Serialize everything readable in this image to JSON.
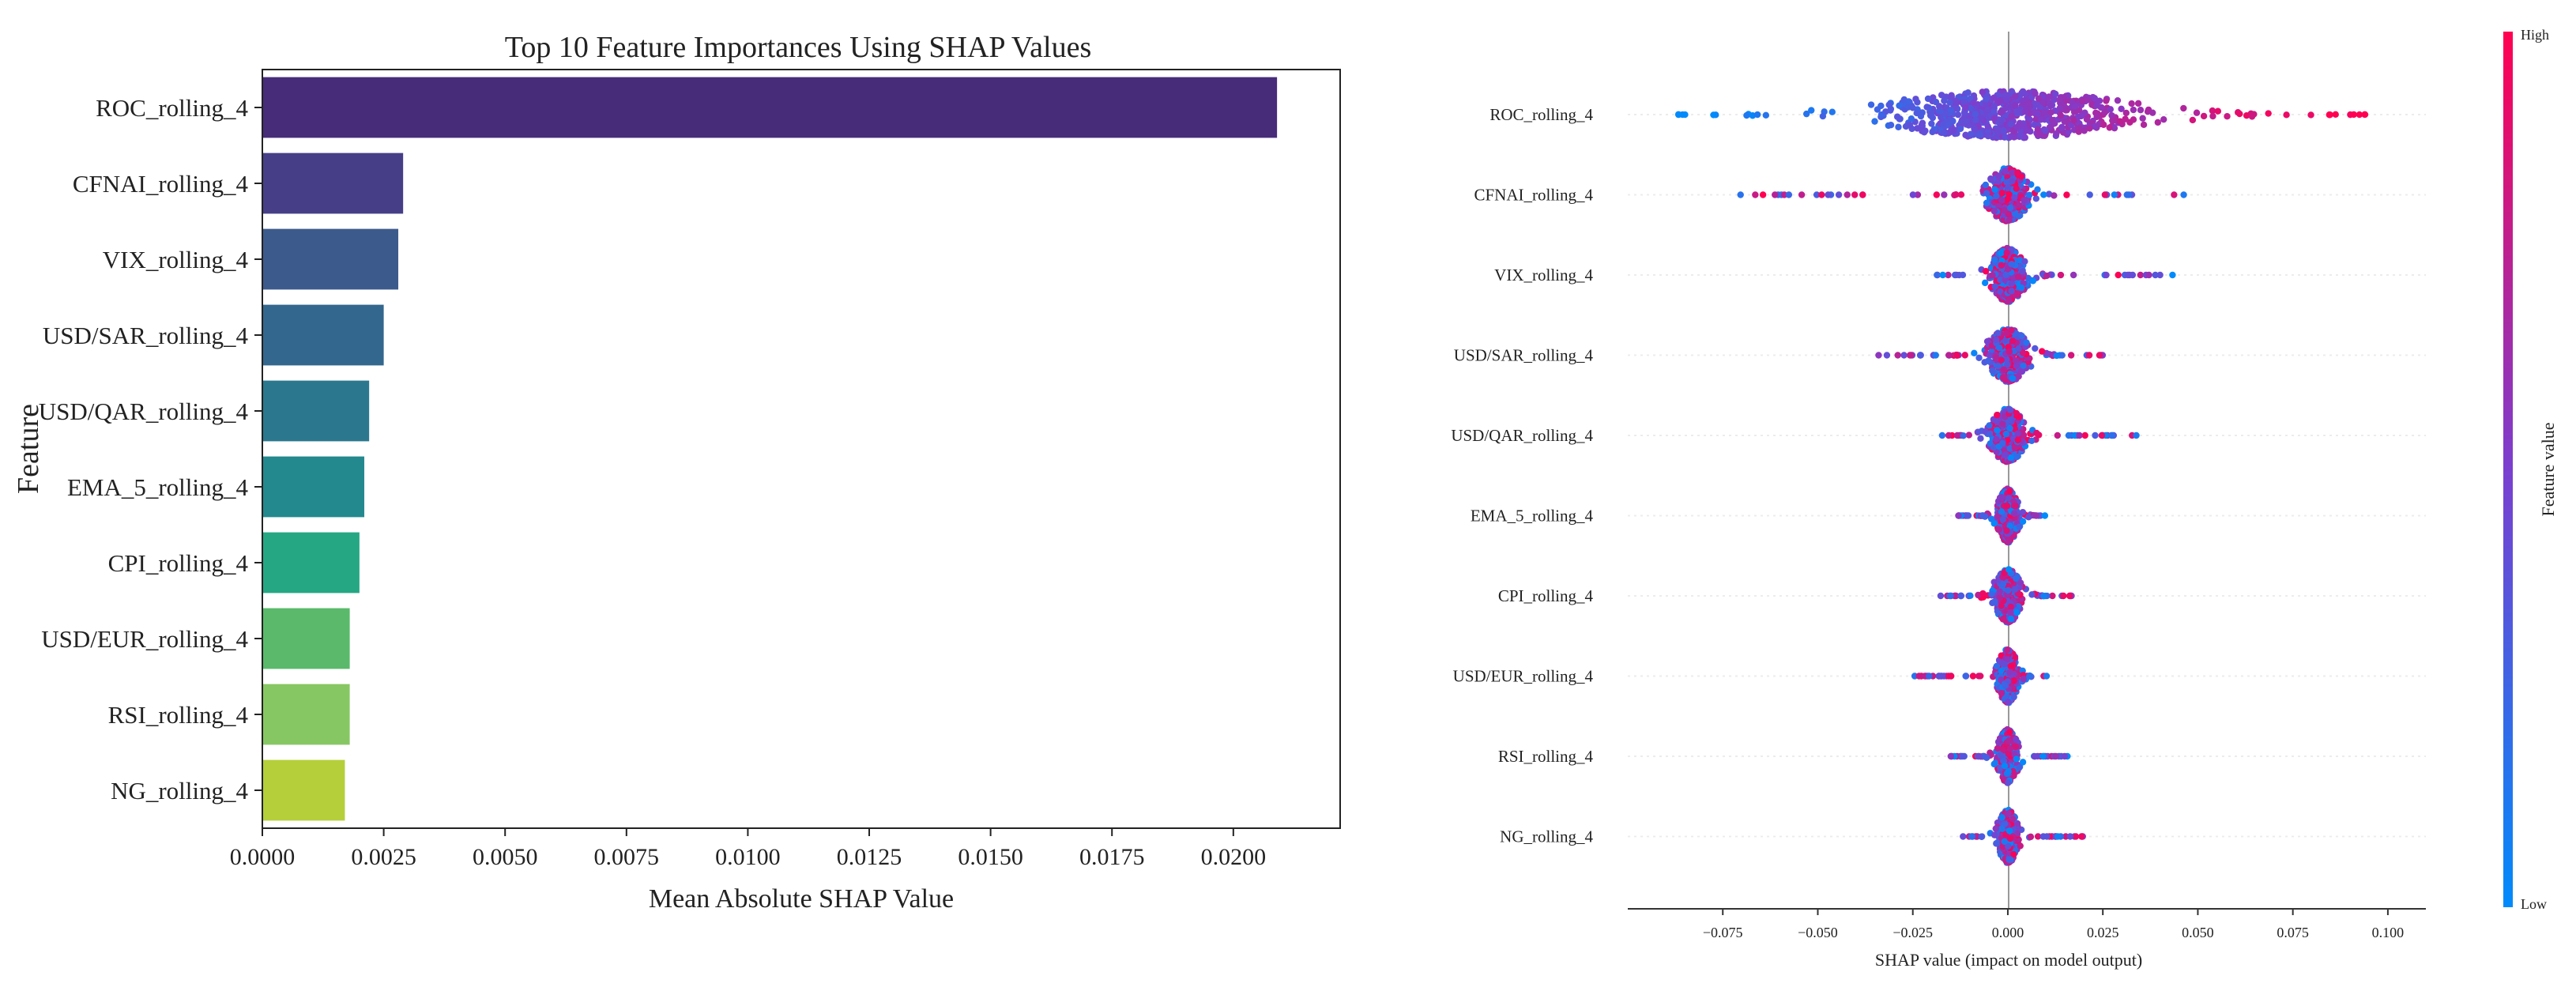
{
  "chart_data": [
    {
      "type": "bar",
      "orientation": "horizontal",
      "title": "Top 10 Feature Importances Using SHAP Values",
      "xlabel": "Mean Absolute SHAP Value",
      "ylabel": "Feature",
      "xlim": [
        0,
        0.0222
      ],
      "xticks": [
        "0.0000",
        "0.0025",
        "0.0050",
        "0.0075",
        "0.0100",
        "0.0125",
        "0.0150",
        "0.0175",
        "0.0200"
      ],
      "categories": [
        "ROC_rolling_4",
        "CFNAI_rolling_4",
        "VIX_rolling_4",
        "USD/SAR_rolling_4",
        "USD/QAR_rolling_4",
        "EMA_5_rolling_4",
        "CPI_rolling_4",
        "USD/EUR_rolling_4",
        "RSI_rolling_4",
        "NG_rolling_4"
      ],
      "values": [
        0.0209,
        0.0029,
        0.0028,
        0.0025,
        0.0022,
        0.0021,
        0.002,
        0.0018,
        0.0018,
        0.0017
      ],
      "colors": [
        "#472c7a",
        "#463f87",
        "#3d5a8c",
        "#34678d",
        "#2b788e",
        "#23898e",
        "#26a784",
        "#5ab96a",
        "#87c763",
        "#b4cf3a"
      ]
    },
    {
      "type": "scatter",
      "subtype": "shap-beeswarm",
      "xlabel": "SHAP value (impact on model output)",
      "xlim": [
        -0.1,
        0.11
      ],
      "xticks": [
        "−0.075",
        "−0.050",
        "−0.025",
        "0.000",
        "0.025",
        "0.050",
        "0.075",
        "0.100"
      ],
      "categories": [
        "ROC_rolling_4",
        "CFNAI_rolling_4",
        "VIX_rolling_4",
        "USD/SAR_rolling_4",
        "USD/QAR_rolling_4",
        "EMA_5_rolling_4",
        "CPI_rolling_4",
        "USD/EUR_rolling_4",
        "RSI_rolling_4",
        "NG_rolling_4"
      ],
      "distributions": [
        {
          "min": -0.087,
          "max": 0.102,
          "core": 0.045,
          "spread": 1.0,
          "positive_high": true
        },
        {
          "min": -0.072,
          "max": 0.049,
          "core": 0.012,
          "spread": 0.6,
          "positive_high": false
        },
        {
          "min": -0.019,
          "max": 0.044,
          "core": 0.01,
          "spread": 0.6,
          "positive_high": false
        },
        {
          "min": -0.034,
          "max": 0.027,
          "core": 0.012,
          "spread": 0.6,
          "positive_high": false
        },
        {
          "min": -0.018,
          "max": 0.035,
          "core": 0.01,
          "spread": 0.6,
          "positive_high": false
        },
        {
          "min": -0.013,
          "max": 0.01,
          "core": 0.006,
          "spread": 0.5,
          "positive_high": false
        },
        {
          "min": -0.019,
          "max": 0.018,
          "core": 0.008,
          "spread": 0.5,
          "positive_high": false
        },
        {
          "min": -0.025,
          "max": 0.011,
          "core": 0.006,
          "spread": 0.5,
          "positive_high": false
        },
        {
          "min": -0.015,
          "max": 0.016,
          "core": 0.006,
          "spread": 0.5,
          "positive_high": false
        },
        {
          "min": -0.013,
          "max": 0.021,
          "core": 0.006,
          "spread": 0.5,
          "positive_high": false
        }
      ],
      "colorbar": {
        "label": "Feature value",
        "high": "High",
        "low": "Low",
        "high_color": "#ff0052",
        "low_color": "#008bfb"
      }
    }
  ]
}
